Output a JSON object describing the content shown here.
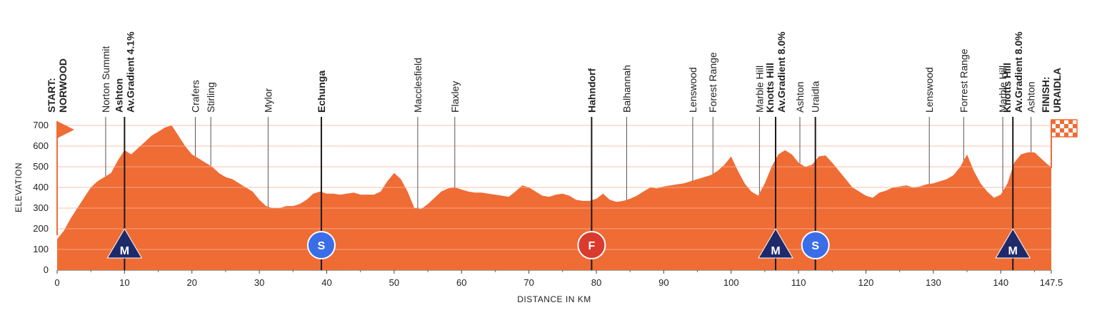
{
  "chart_data": {
    "type": "area",
    "xlabel": "DISTANCE IN KM",
    "ylabel": "ELEVATION",
    "xlim": [
      0,
      147.5
    ],
    "ylim": [
      0,
      750
    ],
    "x_ticks": [
      "0",
      "10",
      "20",
      "30",
      "40",
      "50",
      "60",
      "70",
      "80",
      "90",
      "100",
      "110",
      "120",
      "130",
      "140",
      "147.5"
    ],
    "y_ticks": [
      "0",
      "100",
      "200",
      "300",
      "400",
      "500",
      "600",
      "700"
    ],
    "colors": {
      "fill": "#ef6c35",
      "pointer_line": "#222222",
      "sprint": "#3a6ee8",
      "feed": "#d93b2f",
      "kom": "#1f2a6b",
      "grid": "#f6b59a"
    },
    "profile": [
      [
        0,
        150
      ],
      [
        1,
        190
      ],
      [
        2,
        250
      ],
      [
        3,
        300
      ],
      [
        4,
        350
      ],
      [
        5,
        400
      ],
      [
        6,
        430
      ],
      [
        7,
        450
      ],
      [
        8,
        470
      ],
      [
        9,
        530
      ],
      [
        10,
        580
      ],
      [
        11,
        560
      ],
      [
        12,
        590
      ],
      [
        13,
        620
      ],
      [
        14,
        650
      ],
      [
        15,
        670
      ],
      [
        16,
        690
      ],
      [
        17,
        700
      ],
      [
        18,
        650
      ],
      [
        19,
        600
      ],
      [
        20,
        560
      ],
      [
        21,
        540
      ],
      [
        22,
        520
      ],
      [
        23,
        500
      ],
      [
        24,
        470
      ],
      [
        25,
        450
      ],
      [
        26,
        440
      ],
      [
        27,
        420
      ],
      [
        28,
        400
      ],
      [
        29,
        380
      ],
      [
        30,
        340
      ],
      [
        31,
        310
      ],
      [
        32,
        300
      ],
      [
        33,
        300
      ],
      [
        34,
        310
      ],
      [
        35,
        310
      ],
      [
        36,
        320
      ],
      [
        37,
        340
      ],
      [
        38,
        370
      ],
      [
        39,
        380
      ],
      [
        40,
        370
      ],
      [
        41,
        370
      ],
      [
        42,
        365
      ],
      [
        43,
        370
      ],
      [
        44,
        375
      ],
      [
        45,
        365
      ],
      [
        46,
        365
      ],
      [
        47,
        365
      ],
      [
        48,
        380
      ],
      [
        49,
        430
      ],
      [
        50,
        470
      ],
      [
        51,
        440
      ],
      [
        52,
        380
      ],
      [
        53,
        300
      ],
      [
        54,
        295
      ],
      [
        55,
        320
      ],
      [
        56,
        350
      ],
      [
        57,
        380
      ],
      [
        58,
        395
      ],
      [
        59,
        400
      ],
      [
        60,
        390
      ],
      [
        61,
        380
      ],
      [
        62,
        375
      ],
      [
        63,
        375
      ],
      [
        64,
        370
      ],
      [
        65,
        365
      ],
      [
        66,
        360
      ],
      [
        67,
        355
      ],
      [
        68,
        380
      ],
      [
        69,
        410
      ],
      [
        70,
        400
      ],
      [
        71,
        380
      ],
      [
        72,
        360
      ],
      [
        73,
        355
      ],
      [
        74,
        365
      ],
      [
        75,
        370
      ],
      [
        76,
        360
      ],
      [
        77,
        340
      ],
      [
        78,
        335
      ],
      [
        79,
        335
      ],
      [
        80,
        345
      ],
      [
        81,
        370
      ],
      [
        82,
        340
      ],
      [
        83,
        330
      ],
      [
        84,
        335
      ],
      [
        85,
        345
      ],
      [
        86,
        360
      ],
      [
        87,
        380
      ],
      [
        88,
        400
      ],
      [
        89,
        395
      ],
      [
        90,
        405
      ],
      [
        91,
        410
      ],
      [
        92,
        415
      ],
      [
        93,
        420
      ],
      [
        94,
        430
      ],
      [
        95,
        440
      ],
      [
        96,
        450
      ],
      [
        97,
        460
      ],
      [
        98,
        480
      ],
      [
        99,
        510
      ],
      [
        100,
        550
      ],
      [
        101,
        480
      ],
      [
        102,
        420
      ],
      [
        103,
        380
      ],
      [
        104,
        360
      ],
      [
        105,
        420
      ],
      [
        106,
        500
      ],
      [
        107,
        560
      ],
      [
        108,
        580
      ],
      [
        109,
        560
      ],
      [
        110,
        520
      ],
      [
        111,
        500
      ],
      [
        112,
        510
      ],
      [
        113,
        550
      ],
      [
        114,
        555
      ],
      [
        115,
        520
      ],
      [
        116,
        480
      ],
      [
        117,
        440
      ],
      [
        118,
        400
      ],
      [
        119,
        380
      ],
      [
        120,
        360
      ],
      [
        121,
        350
      ],
      [
        122,
        375
      ],
      [
        123,
        385
      ],
      [
        124,
        400
      ],
      [
        125,
        405
      ],
      [
        126,
        410
      ],
      [
        127,
        400
      ],
      [
        128,
        405
      ],
      [
        129,
        415
      ],
      [
        130,
        420
      ],
      [
        131,
        430
      ],
      [
        132,
        440
      ],
      [
        133,
        460
      ],
      [
        134,
        500
      ],
      [
        135,
        560
      ],
      [
        136,
        480
      ],
      [
        137,
        420
      ],
      [
        138,
        380
      ],
      [
        139,
        350
      ],
      [
        140,
        365
      ],
      [
        141,
        420
      ],
      [
        142,
        520
      ],
      [
        143,
        560
      ],
      [
        144,
        570
      ],
      [
        145,
        570
      ],
      [
        146,
        540
      ],
      [
        147,
        510
      ],
      [
        147.5,
        500
      ]
    ],
    "places": [
      {
        "km": 0,
        "label": "START:",
        "label2": "NORWOOD",
        "bold": true,
        "line": false
      },
      {
        "km": 7.2,
        "label": "Norton Summit",
        "bold": false,
        "line": true
      },
      {
        "km": 10,
        "label": "Ashton",
        "label2": "Av.Gradient 4.1%",
        "bold": true,
        "line": true
      },
      {
        "km": 20.5,
        "label": "Crafers",
        "bold": false,
        "line": true
      },
      {
        "km": 22.8,
        "label": "Stirling",
        "bold": false,
        "line": true
      },
      {
        "km": 31.3,
        "label": "Mylor",
        "bold": false,
        "line": true
      },
      {
        "km": 39.2,
        "label": "Echunga",
        "bold": true,
        "line": true
      },
      {
        "km": 53.5,
        "label": "Macclesfield",
        "bold": false,
        "line": true
      },
      {
        "km": 59,
        "label": "Flaxley",
        "bold": false,
        "line": true
      },
      {
        "km": 79.3,
        "label": "Hahndorf",
        "bold": true,
        "line": true
      },
      {
        "km": 84.5,
        "label": "Balhannah",
        "bold": false,
        "line": true
      },
      {
        "km": 94.3,
        "label": "Lenswood",
        "bold": false,
        "line": true
      },
      {
        "km": 97.3,
        "label": "Forest Range",
        "bold": false,
        "line": true
      },
      {
        "km": 104.2,
        "label": "Marble Hill",
        "bold": false,
        "line": true
      },
      {
        "km": 106.6,
        "label": "Knotts Hill",
        "label2": "Av.Gradient 8.0%",
        "bold": true,
        "line": true
      },
      {
        "km": 110.2,
        "label": "Ashton",
        "bold": false,
        "line": true
      },
      {
        "km": 112.5,
        "label": "Uraidla",
        "bold": false,
        "line": true
      },
      {
        "km": 129.4,
        "label": "Lenswood",
        "bold": false,
        "line": true
      },
      {
        "km": 134.5,
        "label": "Forrest Range",
        "bold": false,
        "line": true
      },
      {
        "km": 140.3,
        "label": "Marble Hill",
        "bold": false,
        "line": true
      },
      {
        "km": 141.8,
        "label": "Knotts Hill",
        "label2": "Av.Gradient 8.0%",
        "bold": true,
        "line": true
      },
      {
        "km": 144.5,
        "label": "Ashton",
        "bold": false,
        "line": true
      },
      {
        "km": 147.5,
        "label": "FINISH:",
        "label2": "URAIDLA",
        "bold": true,
        "line": false
      }
    ],
    "markers": [
      {
        "km": 10,
        "type": "kom",
        "letter": "M"
      },
      {
        "km": 39.2,
        "type": "sprint",
        "letter": "S"
      },
      {
        "km": 79.3,
        "type": "feed",
        "letter": "F"
      },
      {
        "km": 106.6,
        "type": "kom",
        "letter": "M"
      },
      {
        "km": 112.5,
        "type": "sprint",
        "letter": "S"
      },
      {
        "km": 141.8,
        "type": "kom",
        "letter": "M"
      }
    ]
  }
}
